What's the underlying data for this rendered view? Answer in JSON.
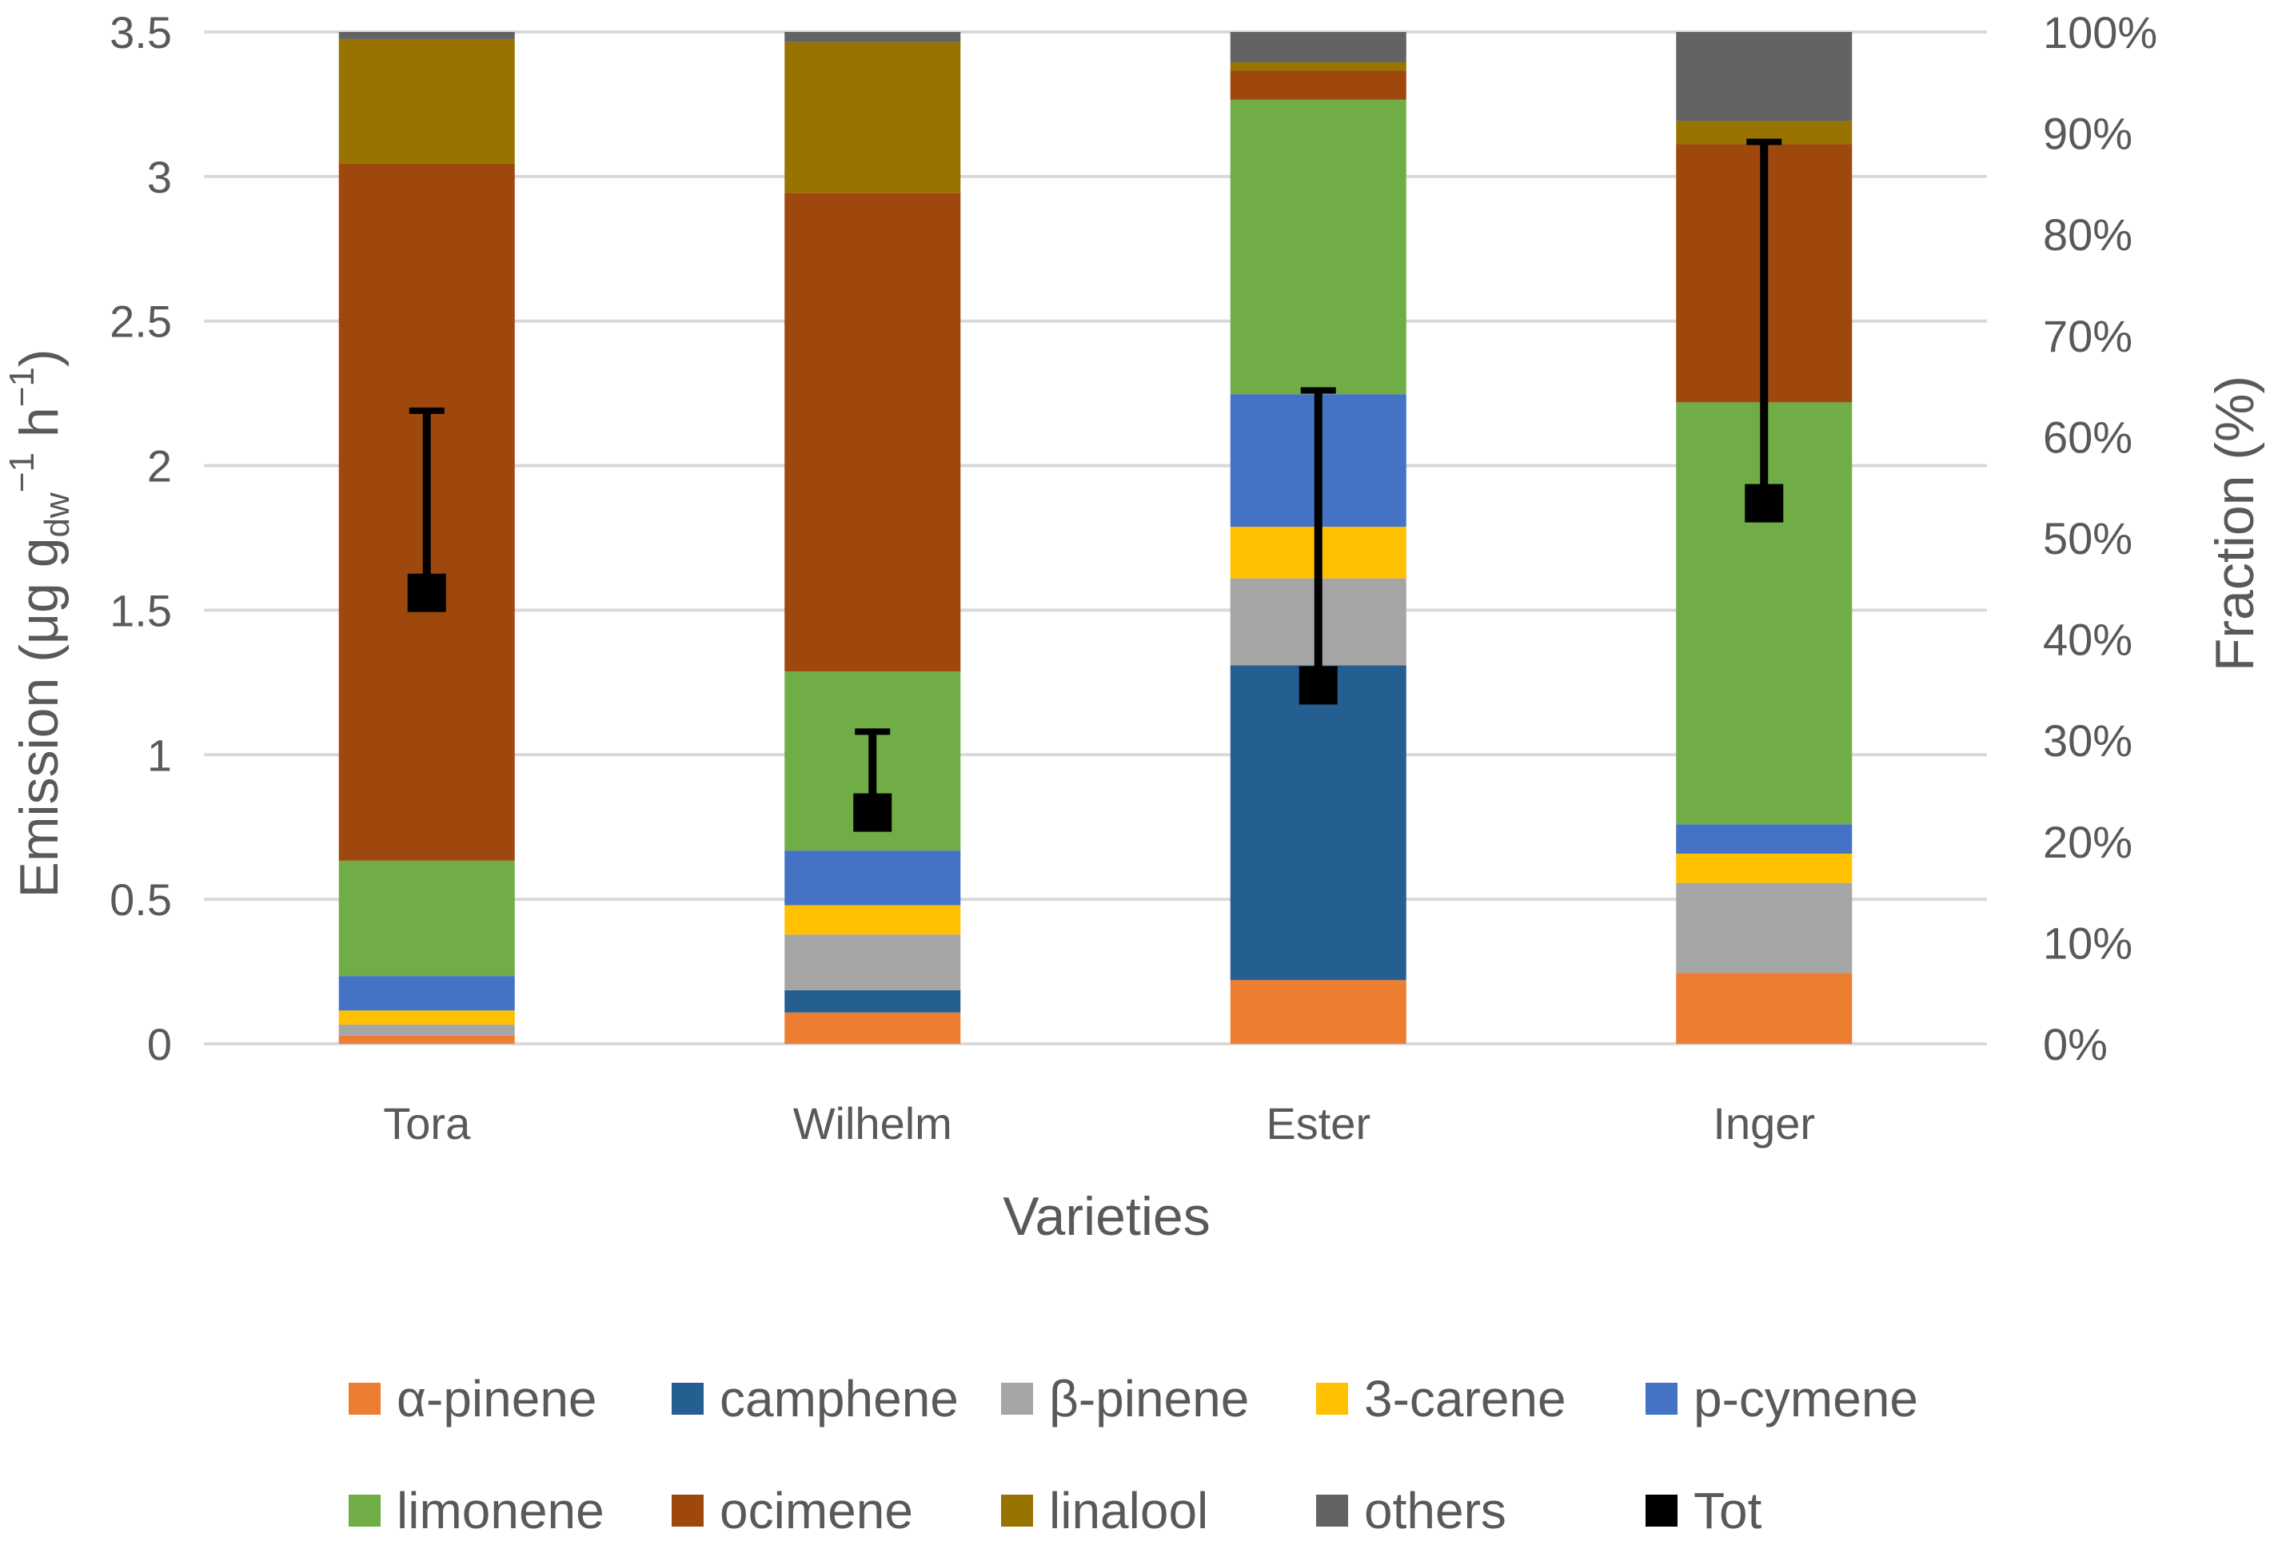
{
  "chart_data": {
    "type": "bar",
    "stacked": true,
    "title": "",
    "xlabel": "Varieties",
    "ylabel": "Emission (μg g",
    "ylabel_sub": "dw",
    "ylabel_sup1": "−1",
    "ylabel_mid": " h",
    "ylabel_sup2": "−1",
    "ylabel_close": ")",
    "y2label": "Fraction (%)",
    "ylim": [
      0,
      3.5
    ],
    "y2lim": [
      0,
      100
    ],
    "yticks": [
      "0",
      "0.5",
      "1",
      "1.5",
      "2",
      "2.5",
      "3",
      "3.5"
    ],
    "y2ticks": [
      "0%",
      "10%",
      "20%",
      "30%",
      "40%",
      "50%",
      "60%",
      "70%",
      "80%",
      "90%",
      "100%"
    ],
    "categories": [
      "Tora",
      "Wilhelm",
      "Ester",
      "Inger"
    ],
    "fraction_series": [
      {
        "name": "α-pinene",
        "color": "#ED7D31",
        "values": [
          0.8,
          3.1,
          6.3,
          7.0
        ]
      },
      {
        "name": "camphene",
        "color": "#255E91",
        "values": [
          0.0,
          2.2,
          31.1,
          0.0
        ]
      },
      {
        "name": "β-pinene",
        "color": "#A5A5A5",
        "values": [
          1.1,
          5.5,
          8.6,
          8.9
        ]
      },
      {
        "name": "3-carene",
        "color": "#FFC000",
        "values": [
          1.4,
          2.9,
          5.1,
          2.9
        ]
      },
      {
        "name": "p-cymene",
        "color": "#4472C4",
        "values": [
          3.4,
          5.4,
          13.1,
          2.9
        ]
      },
      {
        "name": "limonene",
        "color": "#70AD47",
        "values": [
          11.4,
          17.7,
          29.1,
          41.7
        ]
      },
      {
        "name": "ocimene",
        "color": "#9E480E",
        "values": [
          68.9,
          47.3,
          2.9,
          25.5
        ]
      },
      {
        "name": "linalool",
        "color": "#997300",
        "values": [
          12.3,
          14.9,
          0.8,
          2.3
        ]
      },
      {
        "name": "others",
        "color": "#636363",
        "values": [
          0.7,
          1.0,
          3.0,
          8.8
        ]
      }
    ],
    "total": {
      "name": "Tot",
      "color": "#000000",
      "values": [
        1.56,
        0.8,
        1.24,
        1.87
      ],
      "error_upper": [
        2.19,
        1.08,
        2.26,
        3.12
      ],
      "error_lower": [
        1.56,
        0.8,
        1.24,
        1.87
      ]
    },
    "legend_position": "bottom",
    "grid": true
  }
}
